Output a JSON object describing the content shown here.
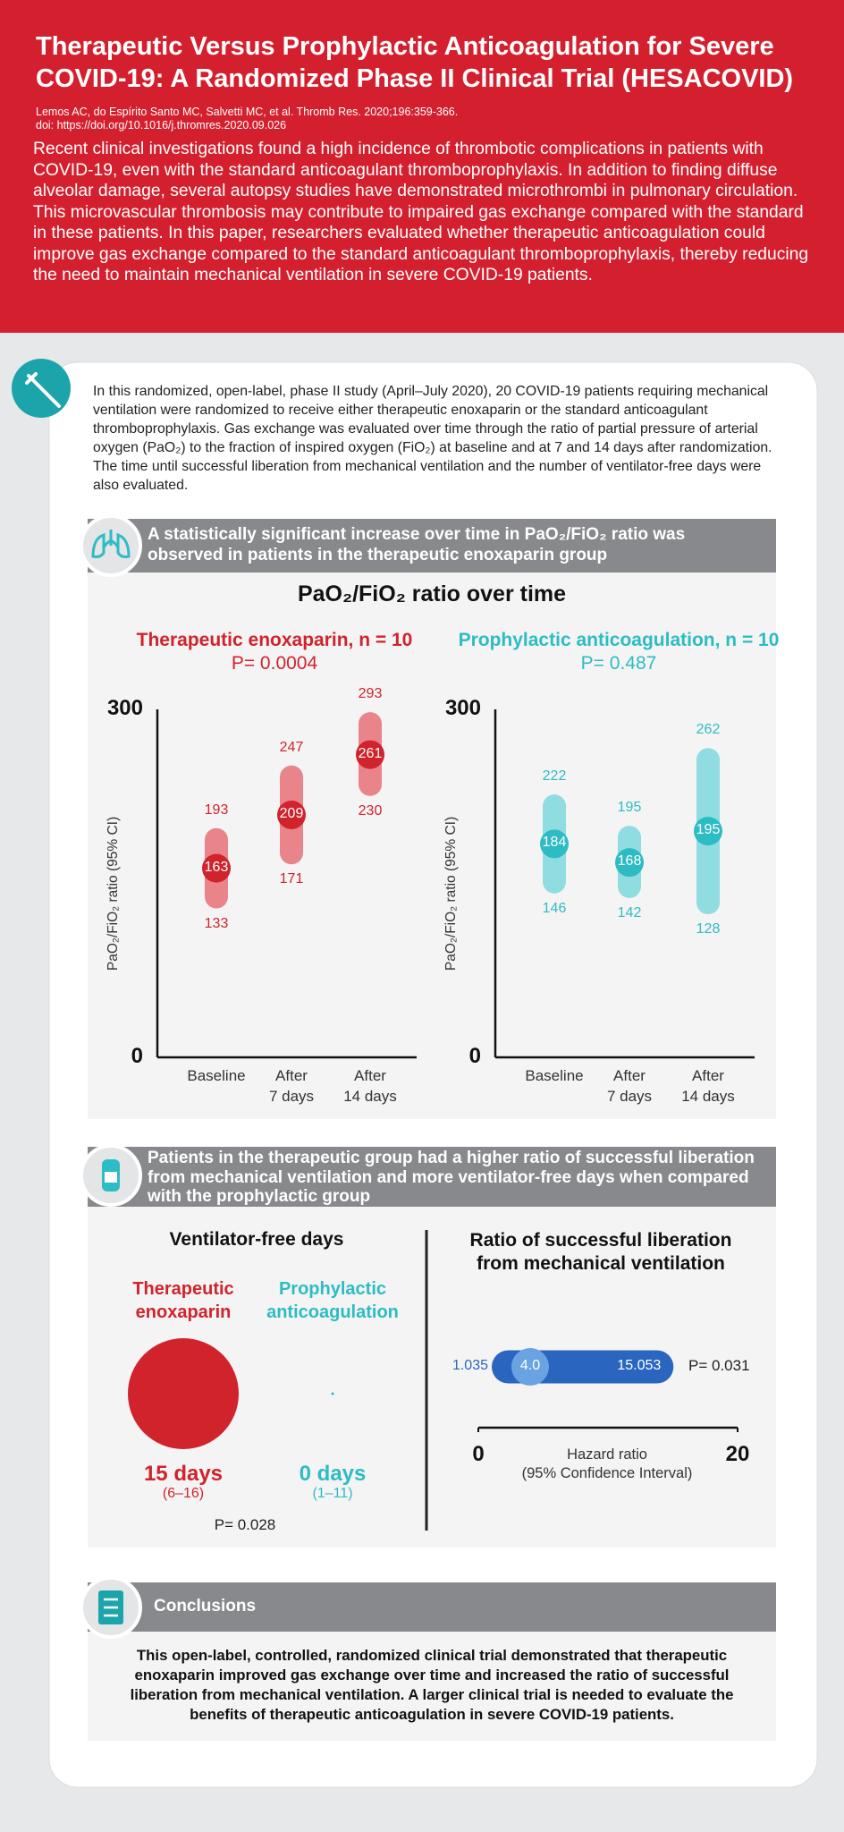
{
  "header": {
    "title": "Therapeutic Versus Prophylactic Anticoagulation for Severe COVID-19: A Randomized Phase II Clinical Trial (HESACOVID)",
    "citation": "Lemos AC, do Espírito Santo MC, Salvetti MC, et al. Thromb Res. 2020;196:359-366.",
    "doi": "doi: https://doi.org/10.1016/j.thromres.2020.09.026",
    "summary": "Recent clinical investigations found a high incidence of thrombotic complications in patients with COVID-19, even with the standard anticoagulant thromboprophylaxis. In addition to finding diffuse alveolar damage, several autopsy studies have demonstrated microthrombi in pulmonary circulation. This microvascular thrombosis may contribute to impaired gas exchange compared with the standard in these patients. In this paper, researchers evaluated whether therapeutic anticoagulation could improve gas exchange compared to the standard anticoagulant thromboprophylaxis, thereby reducing the need to maintain mechanical ventilation in severe COVID-19 patients."
  },
  "intro": "In this randomized, open-label, phase II study (April–July 2020), 20 COVID-19 patients requiring mechanical ventilation were randomized to receive either therapeutic enoxaparin or the standard anticoagulant thromboprophylaxis. Gas exchange was evaluated over time through the ratio of partial pressure of arterial oxygen (PaO₂) to the fraction of inspired oxygen (FiO₂) at baseline and at 7 and 14 days after randomization. The time until successful liberation from mechanical ventilation and the number of ventilator-free days were also evaluated.",
  "section1": {
    "heading": "A statistically significant increase over time in PaO₂/FiO₂ ratio was observed in patients in the therapeutic enoxaparin group",
    "chart_title": "PaO₂/FiO₂ ratio over time"
  },
  "section2": {
    "heading": "Patients in the therapeutic group had a higher ratio of successful liberation from mechanical ventilation and more ventilator-free days when compared with the prophylactic group"
  },
  "conclusions": {
    "heading": "Conclusions",
    "text": "This open-label, controlled, randomized clinical trial demonstrated that therapeutic enoxaparin improved gas exchange over time and increased the ratio of successful liberation from mechanical ventilation. A larger clinical trial is needed to evaluate the benefits of therapeutic anticoagulation in severe COVID-19 patients."
  },
  "chart_data": [
    {
      "type": "interval",
      "title": "Therapeutic enoxaparin, n = 10",
      "p_value": "P= 0.0004",
      "ylabel": "PaO₂/FiO₂ ratio (95% CI)",
      "categories": [
        "Baseline",
        "After\n7 days",
        "After\n14 days"
      ],
      "values": [
        163,
        209,
        261
      ],
      "lower": [
        133,
        171,
        230
      ],
      "upper": [
        193,
        247,
        293
      ],
      "ylim": [
        0,
        300
      ],
      "yticks": [
        0,
        300
      ],
      "color": "#d0232c",
      "interval_color": "#e9858a"
    },
    {
      "type": "interval",
      "title": "Prophylactic anticoagulation, n = 10",
      "p_value": "P= 0.487",
      "ylabel": "PaO₂/FiO₂ ratio (95% CI)",
      "categories": [
        "Baseline",
        "After\n7 days",
        "After\n14 days"
      ],
      "values": [
        184,
        168,
        195
      ],
      "lower": [
        146,
        142,
        128
      ],
      "upper": [
        222,
        195,
        262
      ],
      "ylim": [
        0,
        300
      ],
      "yticks": [
        0,
        300
      ],
      "color": "#2dbcc4",
      "interval_color": "#8fdde1"
    },
    {
      "type": "bubble",
      "title": "Ventilator-free days",
      "categories": [
        "Therapeutic\nenoxaparin",
        "Prophylactic\nanticoagulation"
      ],
      "values": [
        15,
        0
      ],
      "value_labels": [
        "15 days",
        "0 days"
      ],
      "ranges": [
        "(6–16)",
        "(1–11)"
      ],
      "colors": [
        "#d0232c",
        "#2dbcc4"
      ],
      "p_value": "P= 0.028"
    },
    {
      "type": "forest",
      "title": "Ratio of successful liberation\nfrom mechanical ventilation",
      "value": 4.0,
      "value_label": "4.0",
      "lower": 1.035,
      "upper": 15.053,
      "xlim": [
        0,
        20
      ],
      "xticks": [
        0,
        20
      ],
      "xlabel": "Hazard ratio\n(95% Confidence Interval)",
      "p_value": "P= 0.031",
      "color": "#2a66bf",
      "point_color": "#6aa3e2"
    }
  ]
}
